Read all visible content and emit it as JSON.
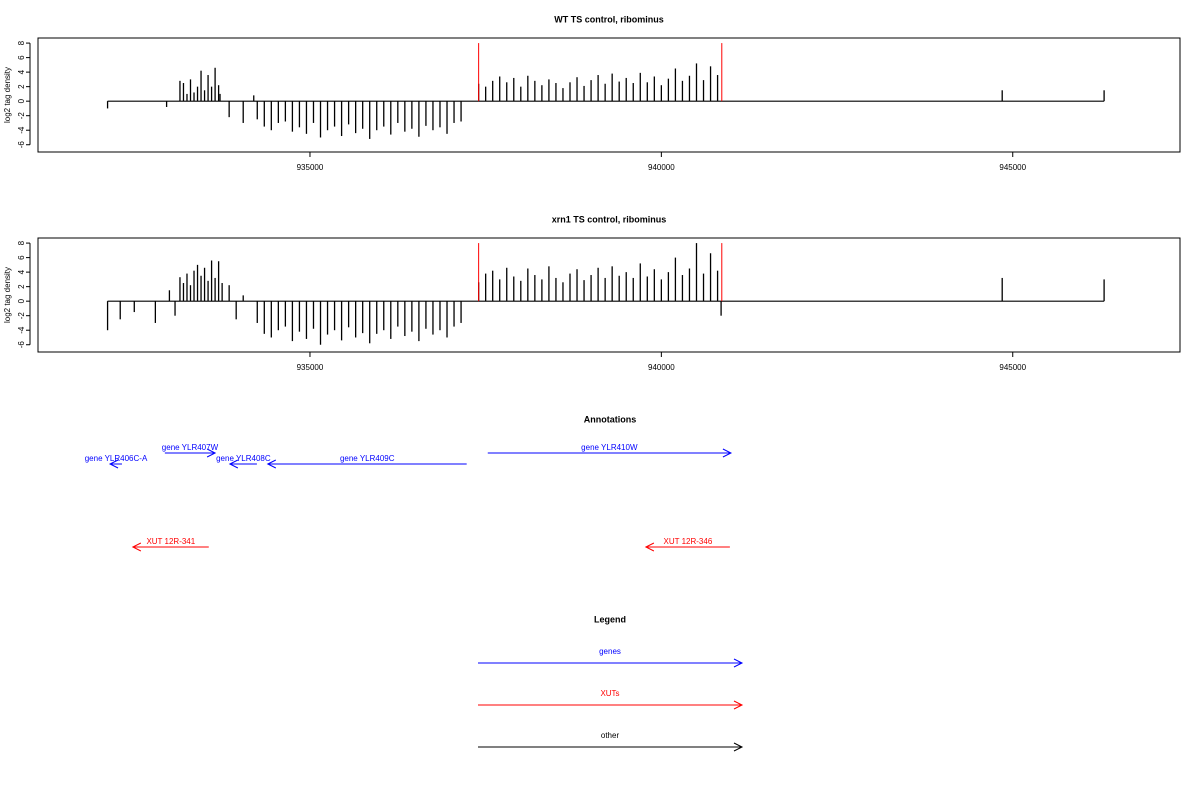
{
  "chart_data": [
    {
      "type": "bar",
      "title": "WT TS control, ribominus",
      "ylabel": "log2 tag density",
      "color": "#000000",
      "xlim": [
        931130,
        947380
      ],
      "ylim": [
        -7,
        8.7
      ],
      "xticks": [
        935000,
        940000,
        945000
      ],
      "yticks": [
        -6,
        -4,
        -2,
        0,
        2,
        4,
        6,
        8
      ],
      "x": [
        932120,
        932960,
        933150,
        933200,
        933250,
        933300,
        933350,
        933400,
        933450,
        933500,
        933550,
        933600,
        933650,
        933700,
        933720,
        933850,
        934050,
        934200,
        934250,
        934350,
        934450,
        934550,
        934650,
        934750,
        934850,
        934950,
        935050,
        935150,
        935250,
        935350,
        935450,
        935550,
        935650,
        935750,
        935850,
        935950,
        936050,
        936150,
        936250,
        936350,
        936450,
        936550,
        936650,
        936750,
        936850,
        936950,
        937050,
        937150,
        937400,
        937500,
        937600,
        937700,
        937800,
        937900,
        938000,
        938100,
        938200,
        938300,
        938400,
        938500,
        938600,
        938700,
        938800,
        938900,
        939000,
        939100,
        939200,
        939300,
        939400,
        939500,
        939600,
        939700,
        939800,
        939900,
        940000,
        940100,
        940200,
        940300,
        940400,
        940500,
        940600,
        940700,
        940800,
        944850,
        946300
      ],
      "values": [
        -1,
        -0.8,
        2.8,
        2.5,
        1,
        3,
        1.2,
        2,
        4.2,
        1.5,
        3.6,
        2,
        4.6,
        2.2,
        1,
        -2.2,
        -3,
        0.8,
        -2.5,
        -3.5,
        -4,
        -3,
        -2.8,
        -4.2,
        -3.6,
        -4.5,
        -3,
        -5,
        -4,
        -3.5,
        -4.8,
        -3.2,
        -4.4,
        -3.8,
        -5.2,
        -4,
        -3.5,
        -4.6,
        -3,
        -4.2,
        -3.8,
        -4.9,
        -3.4,
        -4,
        -3.6,
        -4.5,
        -3,
        -2.8,
        2.4,
        2,
        2.8,
        3.4,
        2.6,
        3.2,
        2,
        3.5,
        2.8,
        2.2,
        3,
        2.5,
        1.8,
        2.6,
        3.3,
        2.1,
        2.9,
        3.6,
        2.4,
        3.8,
        2.7,
        3.2,
        2.5,
        3.9,
        2.6,
        3.4,
        2.2,
        3.1,
        4.5,
        2.8,
        3.5,
        5.2,
        2.9,
        4.8,
        3.6,
        1.5,
        1.5
      ],
      "markers": {
        "color": "#ff0000",
        "x": [
          937400,
          940860
        ],
        "values": [
          8,
          8
        ]
      }
    },
    {
      "type": "bar",
      "title": "xrn1 TS control, ribominus",
      "ylabel": "log2 tag density",
      "color": "#000000",
      "xlim": [
        931130,
        947380
      ],
      "ylim": [
        -7,
        8.7
      ],
      "xticks": [
        935000,
        940000,
        945000
      ],
      "yticks": [
        -6,
        -4,
        -2,
        0,
        2,
        4,
        6,
        8
      ],
      "x": [
        932120,
        932300,
        932500,
        932800,
        933000,
        933080,
        933150,
        933200,
        933250,
        933300,
        933350,
        933400,
        933450,
        933500,
        933550,
        933600,
        933650,
        933700,
        933750,
        933850,
        933950,
        934050,
        934250,
        934350,
        934450,
        934550,
        934650,
        934750,
        934850,
        934950,
        935050,
        935150,
        935250,
        935350,
        935450,
        935550,
        935650,
        935750,
        935850,
        935950,
        936050,
        936150,
        936250,
        936350,
        936450,
        936550,
        936650,
        936750,
        936850,
        936950,
        937050,
        937150,
        937400,
        937500,
        937600,
        937700,
        937800,
        937900,
        938000,
        938100,
        938200,
        938300,
        938400,
        938500,
        938600,
        938700,
        938800,
        938900,
        939000,
        939100,
        939200,
        939300,
        939400,
        939500,
        939600,
        939700,
        939800,
        939900,
        940000,
        940100,
        940200,
        940300,
        940400,
        940500,
        940600,
        940700,
        940800,
        940850,
        944850,
        946300
      ],
      "values": [
        -4,
        -2.5,
        -1.5,
        -3,
        1.5,
        -2,
        3.3,
        2.5,
        3.8,
        2.2,
        4.2,
        5,
        3.5,
        4.6,
        2.8,
        5.6,
        3.2,
        5.5,
        2.5,
        2.2,
        -2.5,
        0.8,
        -3,
        -4.5,
        -5,
        -4,
        -3.5,
        -5.5,
        -4.2,
        -5.2,
        -3.8,
        -6,
        -4.6,
        -4,
        -5.4,
        -3.6,
        -5,
        -4.4,
        -5.8,
        -4.5,
        -4,
        -5.2,
        -3.5,
        -4.8,
        -4.2,
        -5.5,
        -3.8,
        -4.6,
        -4,
        -5,
        -3.5,
        -3,
        2.6,
        3.8,
        4.2,
        3,
        4.6,
        3.4,
        2.8,
        4.5,
        3.6,
        3,
        4.8,
        3.2,
        2.6,
        3.8,
        4.4,
        2.9,
        3.6,
        4.6,
        3.2,
        4.8,
        3.5,
        4,
        3.2,
        5.2,
        3.4,
        4.4,
        3,
        4,
        6,
        3.6,
        4.5,
        8,
        3.8,
        6.6,
        4.2,
        -2,
        3.2,
        3
      ],
      "markers": {
        "color": "#ff0000",
        "x": [
          937400,
          940860
        ],
        "values": [
          8,
          8
        ]
      }
    }
  ],
  "annotations": {
    "title": "Annotations",
    "xlim": [
      931130,
      947380
    ],
    "features": [
      {
        "label": "gene YLR406C-A",
        "start": 932155,
        "end": 932325,
        "strand": "-",
        "color": "#0000ff"
      },
      {
        "label": "gene YLR407W",
        "start": 932935,
        "end": 933650,
        "strand": "+",
        "color": "#0000ff"
      },
      {
        "label": "gene YLR408C",
        "start": 933860,
        "end": 934245,
        "strand": "-",
        "color": "#0000ff"
      },
      {
        "label": "gene YLR409C",
        "start": 934400,
        "end": 937230,
        "strand": "-",
        "color": "#0000ff"
      },
      {
        "label": "gene YLR410W",
        "start": 937530,
        "end": 940990,
        "strand": "+",
        "color": "#0000ff"
      },
      {
        "label": "XUT 12R-341",
        "start": 932480,
        "end": 933560,
        "strand": "-",
        "color": "#ff0000"
      },
      {
        "label": "XUT 12R-346",
        "start": 939780,
        "end": 940975,
        "strand": "-",
        "color": "#ff0000"
      }
    ]
  },
  "legend": {
    "title": "Legend",
    "entries": [
      {
        "label": "genes",
        "color": "#0000ff"
      },
      {
        "label": "XUTs",
        "color": "#ff0000"
      },
      {
        "label": "other",
        "color": "#000000"
      }
    ]
  }
}
